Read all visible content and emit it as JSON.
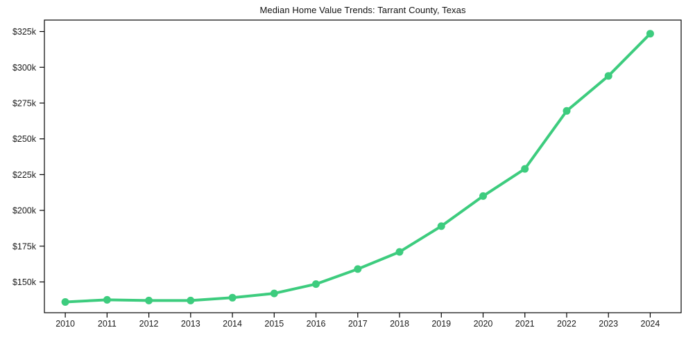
{
  "title": "Median Home Value Trends: Tarrant County, Texas",
  "chart_data": {
    "type": "line",
    "title": "Median Home Value Trends: Tarrant County, Texas",
    "xlabel": "",
    "ylabel": "",
    "x": [
      2010,
      2011,
      2012,
      2013,
      2014,
      2015,
      2016,
      2017,
      2018,
      2019,
      2020,
      2021,
      2022,
      2023,
      2024
    ],
    "series": [
      {
        "name": "Median Home Value",
        "values": [
          136000,
          137500,
          137000,
          137000,
          139000,
          142000,
          148500,
          159000,
          171000,
          189000,
          210000,
          229000,
          269500,
          294000,
          323500
        ]
      }
    ],
    "x_ticks": [
      {
        "value": 2010,
        "label": "2010"
      },
      {
        "value": 2011,
        "label": "2011"
      },
      {
        "value": 2012,
        "label": "2012"
      },
      {
        "value": 2013,
        "label": "2013"
      },
      {
        "value": 2014,
        "label": "2014"
      },
      {
        "value": 2015,
        "label": "2015"
      },
      {
        "value": 2016,
        "label": "2016"
      },
      {
        "value": 2017,
        "label": "2017"
      },
      {
        "value": 2018,
        "label": "2018"
      },
      {
        "value": 2019,
        "label": "2019"
      },
      {
        "value": 2020,
        "label": "2020"
      },
      {
        "value": 2021,
        "label": "2021"
      },
      {
        "value": 2022,
        "label": "2022"
      },
      {
        "value": 2023,
        "label": "2023"
      },
      {
        "value": 2024,
        "label": "2024"
      }
    ],
    "y_ticks": [
      {
        "value": 150000,
        "label": "$150k"
      },
      {
        "value": 175000,
        "label": "$175k"
      },
      {
        "value": 200000,
        "label": "$200k"
      },
      {
        "value": 225000,
        "label": "$225k"
      },
      {
        "value": 250000,
        "label": "$250k"
      },
      {
        "value": 275000,
        "label": "$275k"
      },
      {
        "value": 300000,
        "label": "$300k"
      },
      {
        "value": 325000,
        "label": "$325k"
      }
    ],
    "xlim": [
      2009.5,
      2024.74
    ],
    "ylim": [
      128500,
      333000
    ],
    "grid": false,
    "legend_position": null,
    "line_color": "#3dcc7e",
    "marker": "circle",
    "spine_color": "#000000",
    "tick_label_color": "#1a1a1a"
  }
}
